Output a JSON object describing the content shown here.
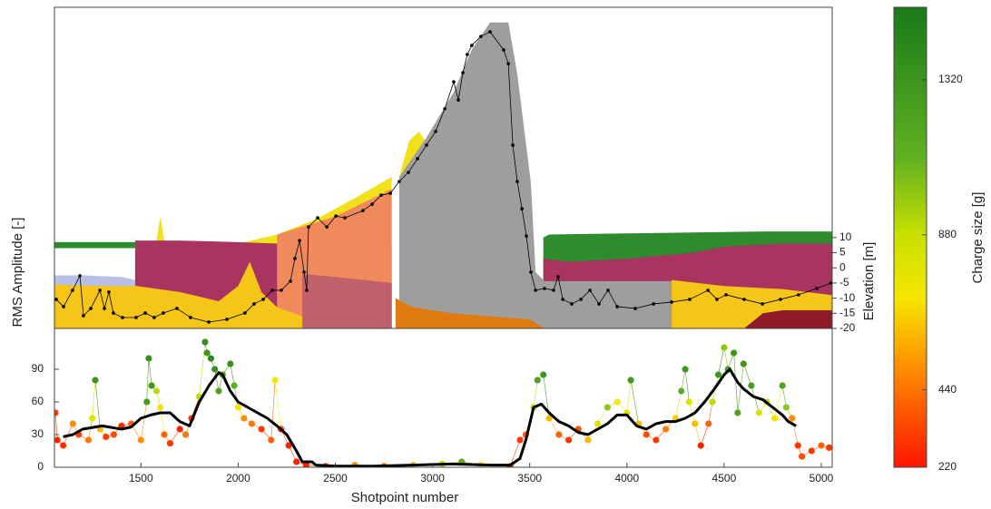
{
  "chart_data": [
    {
      "type": "area",
      "ylabel": "Elevation [m]",
      "xlim": [
        1055,
        5056
      ],
      "ylim": [
        -20,
        86
      ],
      "yticks": [
        10,
        5,
        0,
        -5,
        -10,
        -15,
        -20
      ],
      "series": [
        {
          "color": "#2e8b2e",
          "x": [
            1055,
            1470
          ],
          "values": [
            8.5,
            8.5
          ],
          "base": [
            6.5,
            6.5
          ]
        },
        {
          "color": "#2e8b2e",
          "x": [
            3570,
            3600,
            4700,
            5056
          ],
          "values": [
            10,
            11,
            12,
            12
          ]
        },
        {
          "color": "#f2e01a",
          "x": [
            1540,
            1580,
            1600,
            1620,
            1660
          ],
          "values": [
            8,
            9,
            17,
            9,
            8
          ]
        },
        {
          "color": "#f2e01a",
          "x": [
            2000,
            2200,
            2400,
            2600,
            2790
          ],
          "values": [
            8,
            11,
            16,
            23,
            30
          ]
        },
        {
          "color": "#f2e01a",
          "x": [
            2829,
            2880,
            2930,
            2980
          ],
          "values": [
            30,
            42,
            45,
            40
          ]
        },
        {
          "color": "#a8345f",
          "x": [
            1470,
            1700,
            2000,
            2200,
            2790
          ],
          "values": [
            9,
            9,
            8.5,
            8,
            7
          ]
        },
        {
          "color": "#a8345f",
          "x": [
            3570,
            3700,
            4000,
            4340,
            4500,
            4800,
            5056
          ],
          "values": [
            3,
            2,
            3,
            5,
            7,
            8,
            8
          ]
        },
        {
          "color": "#f08a5d",
          "x": [
            2200,
            2250,
            2500,
            2790
          ],
          "values": [
            11,
            12,
            17,
            26
          ]
        },
        {
          "color": "#c0606a",
          "x": [
            2330,
            2500,
            2790
          ],
          "values": [
            -2,
            -3,
            -5
          ]
        },
        {
          "color": "#b9c0e8",
          "x": [
            1055,
            1200,
            1400,
            1470
          ],
          "values": [
            -2.5,
            -2.5,
            -3,
            -4
          ]
        },
        {
          "color": "#f5c518",
          "x": [
            1055,
            1300,
            1480,
            1700,
            1900,
            2000,
            2060,
            2120,
            2200,
            2330
          ],
          "values": [
            -5.5,
            -6,
            -6,
            -8,
            -11,
            -6,
            2,
            -8,
            -13,
            -16
          ]
        },
        {
          "color": "#f5c518",
          "x": [
            4230,
            4500,
            4800,
            5056
          ],
          "values": [
            -4,
            -6,
            -7,
            -9
          ]
        },
        {
          "color": "#9e9e9e",
          "x": [
            2829,
            2969,
            3109,
            3202,
            3296,
            3390,
            3436,
            3506,
            3530,
            3576,
            4230
          ],
          "values": [
            30,
            43,
            58,
            72,
            81,
            81,
            64,
            28,
            -1.4,
            -4.4,
            -4.4
          ]
        },
        {
          "color": "#e07b12",
          "x": [
            2810,
            2900,
            3100,
            3300,
            3500,
            3576
          ],
          "values": [
            -10,
            -13,
            -15,
            -16,
            -17,
            -20
          ]
        },
        {
          "color": "#8e1a2a",
          "x": [
            4603,
            4700,
            4800,
            5056
          ],
          "values": [
            -20,
            -15,
            -14,
            -14
          ]
        }
      ],
      "overlay": {
        "type": "line",
        "color": "#000000",
        "width": 0.8,
        "markers": true,
        "x": [
          1064,
          1102,
          1148,
          1186,
          1204,
          1242,
          1289,
          1312,
          1335,
          1358,
          1405,
          1475,
          1522,
          1568,
          1615,
          1685,
          1755,
          1849,
          1942,
          2035,
          2082,
          2129,
          2176,
          2222,
          2269,
          2292,
          2316,
          2339,
          2353,
          2362,
          2409,
          2456,
          2503,
          2549,
          2642,
          2689,
          2736,
          2783,
          2829,
          2876,
          2923,
          2969,
          3016,
          3063,
          3109,
          3133,
          3156,
          3179,
          3202,
          3249,
          3296,
          3366,
          3390,
          3413,
          3436,
          3460,
          3483,
          3506,
          3530,
          3576,
          3623,
          3646,
          3670,
          3716,
          3763,
          3810,
          3856,
          3903,
          3950,
          4043,
          4137,
          4230,
          4323,
          4417,
          4463,
          4510,
          4603,
          4697,
          4790,
          4883,
          4977,
          5050
        ],
        "values": [
          -10.4,
          -12.8,
          -7.4,
          -2.6,
          -15.8,
          -13.4,
          -7.4,
          -13.4,
          -8,
          -14.9,
          -16.4,
          -16.4,
          -14.9,
          -16.4,
          -14.9,
          -13.4,
          -16.4,
          -17.9,
          -17,
          -14.9,
          -11.9,
          -10.4,
          -7.4,
          -7.4,
          -4.4,
          3.1,
          9,
          -1.4,
          -7.4,
          13.5,
          16.5,
          13.5,
          17.1,
          16.5,
          18.9,
          21,
          24,
          24.6,
          28.5,
          31.5,
          36,
          40.5,
          45,
          52.5,
          61.4,
          55.4,
          64.4,
          70.4,
          73.4,
          76.4,
          77.9,
          71.9,
          67.4,
          40.5,
          28.5,
          19.5,
          10.5,
          -1.4,
          -7.4,
          -6.8,
          -7.4,
          -2.9,
          -10.4,
          -11.9,
          -10.4,
          -7.4,
          -11.9,
          -7.4,
          -12.8,
          -13.4,
          -11.9,
          -11.3,
          -10.4,
          -7.4,
          -10.4,
          -8.9,
          -10.4,
          -11.9,
          -10.4,
          -8.9,
          -6.8,
          -5
        ]
      }
    },
    {
      "type": "scatter",
      "xlabel": "Shotpoint number",
      "ylabel": "RMS Amplitude [-]",
      "xlim": [
        1055,
        5056
      ],
      "ylim": [
        0,
        127.5
      ],
      "xticks": [
        1500,
        2000,
        2500,
        3000,
        3500,
        4000,
        4500,
        5000
      ],
      "yticks": [
        0,
        30,
        60,
        90
      ],
      "x": [
        1060,
        1070,
        1100,
        1150,
        1180,
        1230,
        1250,
        1265,
        1290,
        1320,
        1360,
        1400,
        1450,
        1500,
        1530,
        1540,
        1555,
        1580,
        1600,
        1620,
        1650,
        1700,
        1730,
        1760,
        1800,
        1830,
        1840,
        1860,
        1880,
        1900,
        1920,
        1960,
        1980,
        2000,
        2030,
        2070,
        2120,
        2170,
        2190,
        2220,
        2260,
        2300,
        2350,
        2450,
        2600,
        2750,
        2900,
        3050,
        3150,
        3250,
        3400,
        3450,
        3480,
        3520,
        3540,
        3570,
        3600,
        3650,
        3700,
        3750,
        3800,
        3850,
        3900,
        3950,
        4000,
        4020,
        4060,
        4100,
        4150,
        4200,
        4250,
        4280,
        4300,
        4320,
        4350,
        4380,
        4420,
        4440,
        4470,
        4500,
        4520,
        4550,
        4570,
        4600,
        4640,
        4680,
        4720,
        4760,
        4800,
        4820,
        4850,
        4880,
        4900,
        4950,
        5000,
        5040
      ],
      "values": [
        50,
        25,
        20,
        40,
        30,
        25,
        45,
        80,
        35,
        28,
        30,
        38,
        40,
        25,
        60,
        100,
        75,
        70,
        55,
        30,
        22,
        35,
        30,
        45,
        65,
        115,
        105,
        100,
        90,
        70,
        85,
        95,
        75,
        55,
        45,
        40,
        35,
        25,
        80,
        35,
        20,
        5,
        2,
        1,
        2,
        1,
        2,
        3,
        5,
        2,
        1,
        25,
        30,
        55,
        80,
        85,
        45,
        30,
        25,
        35,
        25,
        40,
        55,
        60,
        50,
        80,
        40,
        30,
        25,
        35,
        45,
        70,
        90,
        60,
        40,
        20,
        40,
        60,
        85,
        110,
        90,
        105,
        50,
        95,
        75,
        50,
        60,
        45,
        75,
        55,
        45,
        20,
        10,
        15,
        20,
        18
      ],
      "charge": [
        300,
        250,
        280,
        500,
        320,
        450,
        800,
        1300,
        600,
        300,
        350,
        260,
        400,
        500,
        1250,
        1350,
        1300,
        900,
        700,
        400,
        300,
        250,
        450,
        300,
        900,
        1350,
        1300,
        1400,
        1350,
        1200,
        1250,
        1350,
        1100,
        700,
        500,
        450,
        300,
        400,
        700,
        300,
        250,
        250,
        250,
        300,
        500,
        400,
        600,
        900,
        1100,
        700,
        300,
        300,
        400,
        900,
        1200,
        1300,
        600,
        400,
        300,
        350,
        600,
        800,
        1000,
        700,
        800,
        1300,
        600,
        350,
        300,
        450,
        650,
        1100,
        1300,
        800,
        600,
        250,
        400,
        900,
        1300,
        1000,
        1250,
        1300,
        1200,
        1300,
        1250,
        800,
        900,
        700,
        1200,
        1000,
        500,
        300,
        350,
        300,
        400,
        300
      ],
      "overlay": {
        "type": "line",
        "color": "#000000",
        "width": 3,
        "markers": false,
        "x": [
          1100,
          1150,
          1200,
          1300,
          1400,
          1450,
          1500,
          1550,
          1600,
          1650,
          1700,
          1750,
          1800,
          1850,
          1900,
          1920,
          1960,
          2000,
          2050,
          2100,
          2150,
          2200,
          2250,
          2300,
          2330,
          2380,
          2400,
          2500,
          2700,
          2900,
          3100,
          3300,
          3400,
          3450,
          3480,
          3520,
          3560,
          3600,
          3650,
          3700,
          3750,
          3800,
          3850,
          3900,
          3950,
          4000,
          4050,
          4100,
          4150,
          4200,
          4250,
          4300,
          4350,
          4400,
          4450,
          4500,
          4530,
          4570,
          4600,
          4650,
          4700,
          4750,
          4800,
          4830,
          4870
        ],
        "values": [
          28,
          30,
          35,
          38,
          35,
          37,
          45,
          48,
          50,
          50,
          42,
          38,
          60,
          75,
          87,
          85,
          70,
          60,
          55,
          50,
          45,
          38,
          30,
          15,
          5,
          5,
          2,
          1,
          1,
          2,
          3,
          2,
          2,
          8,
          25,
          55,
          58,
          50,
          42,
          38,
          32,
          30,
          35,
          40,
          48,
          48,
          38,
          35,
          40,
          42,
          42,
          45,
          50,
          60,
          72,
          85,
          90,
          78,
          72,
          65,
          62,
          55,
          48,
          42,
          38
        ]
      }
    },
    {
      "type": "colorbar",
      "label": "Charge size [g]",
      "ylim": [
        220,
        1526
      ],
      "yticks": [
        220,
        440,
        880,
        1320
      ],
      "color_stops": [
        {
          "value": 220,
          "color": "#ff1500"
        },
        {
          "value": 500,
          "color": "#ff8c00"
        },
        {
          "value": 700,
          "color": "#f5e600"
        },
        {
          "value": 880,
          "color": "#c8e000"
        },
        {
          "value": 1100,
          "color": "#5fb020"
        },
        {
          "value": 1526,
          "color": "#1a7a1a"
        }
      ]
    }
  ]
}
